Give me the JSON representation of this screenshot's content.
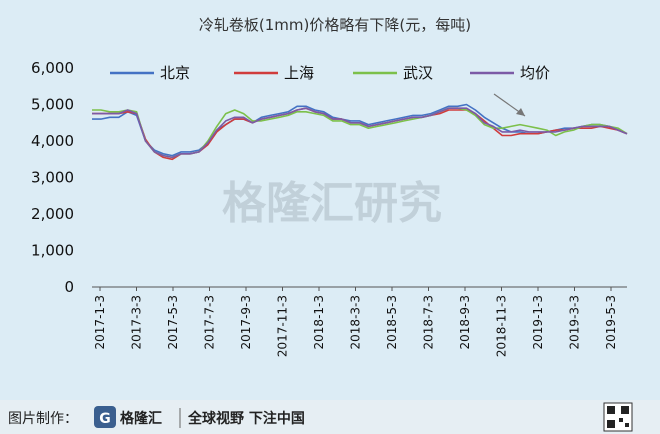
{
  "chart_data": {
    "type": "line",
    "title": "冷轧卷板(1mm)价格略有下降(元，每吨)",
    "xlabel": "",
    "ylabel": "",
    "ylim": [
      0,
      6000
    ],
    "yticks": [
      "0",
      "1,000",
      "2,000",
      "3,000",
      "4,000",
      "5,000",
      "6,000"
    ],
    "xticks": [
      "2017-1-3",
      "2017-3-3",
      "2017-5-3",
      "2017-7-3",
      "2017-9-3",
      "2017-11-3",
      "2018-1-3",
      "2018-3-3",
      "2018-5-3",
      "2018-7-3",
      "2018-9-3",
      "2018-11-3",
      "2019-1-3",
      "2019-3-3",
      "2019-5-3"
    ],
    "legend_position": "top",
    "grid": false,
    "x": [
      0,
      0.5,
      1,
      1.5,
      2,
      2.5,
      3,
      3.5,
      4,
      4.5,
      5,
      5.5,
      6,
      6.5,
      7,
      7.5,
      8,
      8.5,
      9,
      9.5,
      10,
      10.5,
      11,
      11.5,
      12,
      12.5,
      13,
      13.5,
      14,
      14.5,
      15,
      15.5,
      16,
      16.5,
      17,
      17.5,
      18,
      18.5,
      19,
      19.5,
      20,
      20.5,
      21,
      21.5,
      22,
      22.5,
      23,
      23.5,
      24,
      24.5,
      25,
      25.5,
      26,
      26.5,
      27,
      27.5,
      28,
      28.5,
      29,
      29.5,
      30
    ],
    "series": [
      {
        "name": "北京",
        "color": "#4472c4",
        "values": [
          4600,
          4600,
          4650,
          4650,
          4800,
          4700,
          4000,
          3750,
          3650,
          3600,
          3700,
          3700,
          3750,
          3950,
          4300,
          4450,
          4600,
          4600,
          4500,
          4650,
          4700,
          4750,
          4800,
          4950,
          4950,
          4850,
          4800,
          4650,
          4600,
          4550,
          4550,
          4450,
          4500,
          4550,
          4600,
          4650,
          4700,
          4700,
          4750,
          4850,
          4950,
          4950,
          5000,
          4850,
          4650,
          4500,
          4350,
          4250,
          4250,
          4200,
          4200,
          4250,
          4300,
          4350,
          4350,
          4400,
          4450,
          4450,
          4400,
          4300,
          4200
        ]
      },
      {
        "name": "上海",
        "color": "#d03c3c",
        "values": [
          4750,
          4750,
          4750,
          4750,
          4800,
          4750,
          4050,
          3700,
          3550,
          3500,
          3650,
          3650,
          3700,
          3900,
          4250,
          4450,
          4600,
          4600,
          4500,
          4600,
          4650,
          4700,
          4750,
          4850,
          4900,
          4800,
          4750,
          4600,
          4600,
          4500,
          4500,
          4400,
          4450,
          4500,
          4550,
          4600,
          4650,
          4650,
          4700,
          4750,
          4850,
          4850,
          4850,
          4750,
          4550,
          4350,
          4150,
          4150,
          4200,
          4200,
          4200,
          4250,
          4300,
          4300,
          4350,
          4350,
          4350,
          4400,
          4350,
          4300,
          4200
        ]
      },
      {
        "name": "武汉",
        "color": "#7cc04a",
        "values": [
          4850,
          4850,
          4800,
          4800,
          4850,
          4800,
          4000,
          3700,
          3600,
          3550,
          3650,
          3650,
          3700,
          4000,
          4400,
          4750,
          4850,
          4750,
          4550,
          4550,
          4600,
          4650,
          4700,
          4800,
          4800,
          4750,
          4700,
          4550,
          4550,
          4450,
          4450,
          4350,
          4400,
          4450,
          4500,
          4550,
          4600,
          4650,
          4700,
          4800,
          4900,
          4900,
          4850,
          4700,
          4450,
          4350,
          4350,
          4400,
          4450,
          4400,
          4350,
          4300,
          4150,
          4250,
          4300,
          4400,
          4450,
          4450,
          4400,
          4350,
          4200
        ]
      },
      {
        "name": "均价",
        "color": "#7b5aa6",
        "values": [
          4750,
          4750,
          4750,
          4750,
          4850,
          4750,
          4000,
          3700,
          3600,
          3550,
          3650,
          3650,
          3700,
          3950,
          4300,
          4550,
          4650,
          4650,
          4500,
          4600,
          4650,
          4700,
          4750,
          4850,
          4900,
          4800,
          4750,
          4600,
          4600,
          4500,
          4500,
          4400,
          4450,
          4500,
          4550,
          4600,
          4650,
          4650,
          4700,
          4800,
          4900,
          4900,
          4900,
          4750,
          4500,
          4400,
          4250,
          4250,
          4300,
          4250,
          4250,
          4250,
          4250,
          4300,
          4350,
          4400,
          4400,
          4400,
          4400,
          4300,
          4200
        ]
      }
    ]
  },
  "watermark": "格隆汇研究",
  "footer": {
    "credit_label": "图片制作：",
    "brand_name": "格隆汇",
    "slogan": "全球视野 下注中国"
  }
}
